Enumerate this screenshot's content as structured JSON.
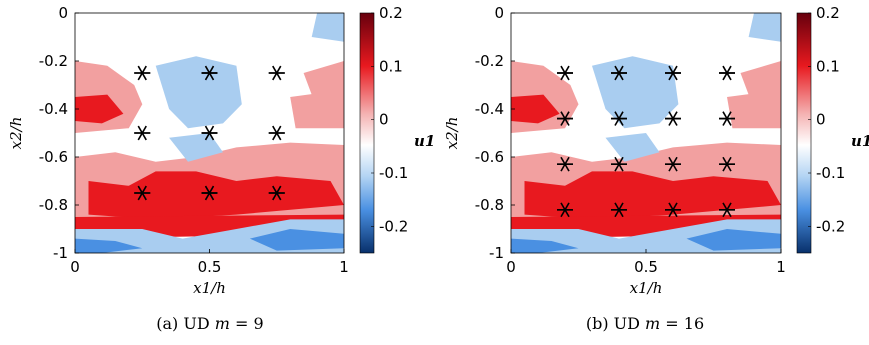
{
  "chart_data": [
    {
      "type": "heatmap",
      "caption": "(a) UD m = 9",
      "caption_parts": {
        "prefix": "(a) UD ",
        "var": "m",
        "suffix": " = 9"
      },
      "xlabel": "x1/h",
      "ylabel": "x2/h",
      "xlim": [
        0,
        1
      ],
      "ylim": [
        -1,
        0
      ],
      "xticks": [
        0,
        0.5,
        1
      ],
      "xtick_labels": [
        "0",
        "0.5",
        "1"
      ],
      "yticks": [
        0,
        -0.2,
        -0.4,
        -0.6,
        -0.8,
        -1
      ],
      "ytick_labels": [
        "0",
        "-0.2",
        "-0.4",
        "-0.6",
        "-0.8",
        "-1"
      ],
      "colorbar": {
        "label": "u1",
        "range": [
          -0.25,
          0.2
        ],
        "ticks": [
          0.2,
          0.1,
          0,
          -0.1,
          -0.2
        ],
        "tick_labels": [
          "0.2",
          "0.1",
          "0",
          "-0.1",
          "-0.2"
        ]
      },
      "markers": {
        "symbol": "asterisk",
        "points": [
          [
            0.25,
            -0.25
          ],
          [
            0.5,
            -0.25
          ],
          [
            0.75,
            -0.25
          ],
          [
            0.25,
            -0.5
          ],
          [
            0.5,
            -0.5
          ],
          [
            0.75,
            -0.5
          ],
          [
            0.25,
            -0.75
          ],
          [
            0.5,
            -0.75
          ],
          [
            0.75,
            -0.75
          ]
        ]
      }
    },
    {
      "type": "heatmap",
      "caption": "(b) UD m = 16",
      "caption_parts": {
        "prefix": "(b) UD ",
        "var": "m",
        "suffix": " = 16"
      },
      "xlabel": "x1/h",
      "ylabel": "x2/h",
      "xlim": [
        0,
        1
      ],
      "ylim": [
        -1,
        0
      ],
      "xticks": [
        0,
        0.5,
        1
      ],
      "xtick_labels": [
        "0",
        "0.5",
        "1"
      ],
      "yticks": [
        0,
        -0.2,
        -0.4,
        -0.6,
        -0.8,
        -1
      ],
      "ytick_labels": [
        "0",
        "-0.2",
        "-0.4",
        "-0.6",
        "-0.8",
        "-1"
      ],
      "colorbar": {
        "label": "u1",
        "range": [
          -0.25,
          0.2
        ],
        "ticks": [
          0.2,
          0.1,
          0,
          -0.1,
          -0.2
        ],
        "tick_labels": [
          "0.2",
          "0.1",
          "0",
          "-0.1",
          "-0.2"
        ]
      },
      "markers": {
        "symbol": "asterisk",
        "points": [
          [
            0.2,
            -0.25
          ],
          [
            0.4,
            -0.25
          ],
          [
            0.6,
            -0.25
          ],
          [
            0.8,
            -0.25
          ],
          [
            0.2,
            -0.44
          ],
          [
            0.4,
            -0.44
          ],
          [
            0.6,
            -0.44
          ],
          [
            0.8,
            -0.44
          ],
          [
            0.2,
            -0.63
          ],
          [
            0.4,
            -0.63
          ],
          [
            0.6,
            -0.63
          ],
          [
            0.8,
            -0.63
          ],
          [
            0.2,
            -0.82
          ],
          [
            0.4,
            -0.82
          ],
          [
            0.6,
            -0.82
          ],
          [
            0.8,
            -0.82
          ]
        ]
      }
    }
  ],
  "colormap": {
    "negative_max": "#08306b",
    "negative_mid": "#4a90e2",
    "negative_light": "#a9cdf0",
    "zero": "#ffffff",
    "positive_light": "#f2a0a0",
    "positive_mid": "#e8191f",
    "positive_max": "#67000d"
  }
}
